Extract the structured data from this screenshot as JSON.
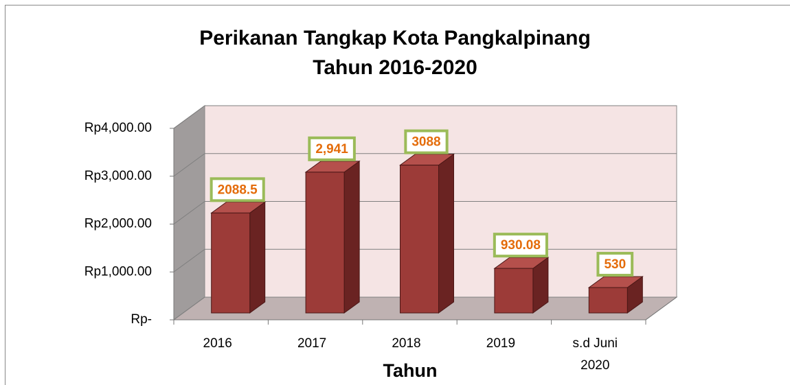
{
  "chart_data": {
    "type": "bar3d",
    "title": [
      "Perikanan Tangkap Kota Pangkalpinang",
      "Tahun 2016-2020"
    ],
    "x_label": "Tahun",
    "categories": [
      "2016",
      "2017",
      "2018",
      "2019",
      "s.d Juni 2020"
    ],
    "values": [
      2088.5,
      2941,
      3088,
      930.08,
      530
    ],
    "value_labels": [
      "2088.5",
      "2,941",
      "3088",
      "930.08",
      "530"
    ],
    "color": "#9c3b38",
    "label_border_color": "#9bbb59",
    "label_text_color": "#e46c0a",
    "ylim": [
      0,
      4000
    ],
    "yticks": [
      {
        "value": 0,
        "label": "Rp-"
      },
      {
        "value": 1000,
        "label": "Rp1,000.00"
      },
      {
        "value": 2000,
        "label": "Rp2,000.00"
      },
      {
        "value": 3000,
        "label": "Rp3,000.00"
      },
      {
        "value": 4000,
        "label": "Rp4,000.00"
      }
    ],
    "grid": true
  }
}
